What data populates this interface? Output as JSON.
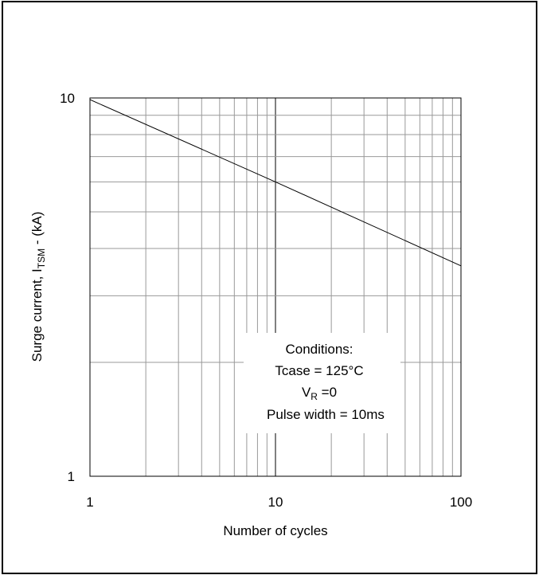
{
  "chart_data": {
    "type": "line",
    "x_scale": "log",
    "y_scale": "log",
    "xlim": [
      1,
      100
    ],
    "ylim": [
      1,
      10
    ],
    "grid": true,
    "xlabel": "Number of cycles",
    "ylabel": {
      "prefix": "Surge current, I",
      "sub": "TSM",
      "suffix": " - (kA)"
    },
    "x_ticks": [
      "1",
      "10",
      "100"
    ],
    "y_ticks": [
      "1",
      "10"
    ],
    "series": [
      {
        "x": [
          1,
          10,
          100
        ],
        "y": [
          9.9,
          6.0,
          3.6
        ]
      }
    ],
    "annotation": {
      "title": "Conditions:",
      "line1": "Tcase = 125°C",
      "line2_prefix": "V",
      "line2_sub": "R",
      "line2_suffix": " =0",
      "line3": "Pulse width = 10ms"
    }
  }
}
